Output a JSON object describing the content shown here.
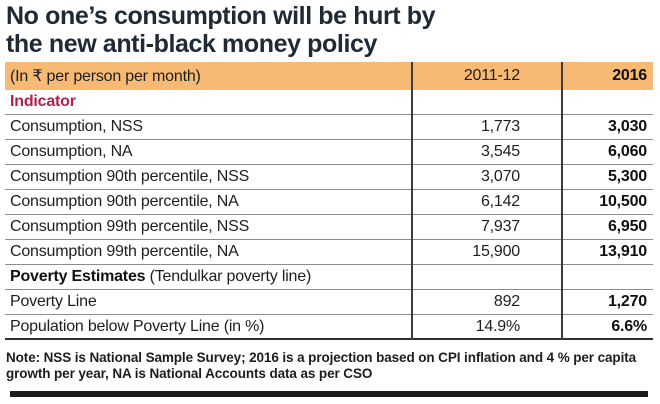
{
  "header": {
    "title_line1": "No one’s consumption will be hurt by",
    "title_line2": "the new anti-black money policy"
  },
  "chart_data": {
    "type": "table",
    "title": "No one’s consumption will be hurt by the new anti-black money policy",
    "unit_label": "(In ₹ per person per month)",
    "col_headers": [
      "2011-12",
      "2016"
    ],
    "rows": [
      {
        "label": "Indicator",
        "suffix": "",
        "y2011": "",
        "y2016": ""
      },
      {
        "label": "Consumption, NSS",
        "suffix": "",
        "y2011": "1,773",
        "y2016": "3,030"
      },
      {
        "label": "Consumption, NA",
        "suffix": "",
        "y2011": "3,545",
        "y2016": "6,060"
      },
      {
        "label": "Consumption 90th percentile, NSS",
        "suffix": "",
        "y2011": "3,070",
        "y2016": "5,300"
      },
      {
        "label": "Consumption 90th percentile, NA",
        "suffix": "",
        "y2011": "6,142",
        "y2016": "10,500"
      },
      {
        "label": "Consumption 99th percentile, NSS",
        "suffix": "",
        "y2011": "7,937",
        "y2016": "6,950"
      },
      {
        "label": "Consumption 99th percentile, NA",
        "suffix": "",
        "y2011": "15,900",
        "y2016": "13,910"
      },
      {
        "label": "Poverty Estimates",
        "suffix": " (Tendulkar poverty line)",
        "y2011": "",
        "y2016": ""
      },
      {
        "label": "Poverty Line",
        "suffix": "",
        "y2011": "892",
        "y2016": "1,270"
      },
      {
        "label": "Population below Poverty Line (in %)",
        "suffix": "",
        "y2011": "14.9%",
        "y2016": "6.6%"
      }
    ],
    "note": "Note: NSS is National Sample Survey; 2016 is a projection based on CPI inflation and 4 % per capita growth per year, NA is National Accounts data as per CSO"
  },
  "colors": {
    "header_band": "#f7ba75",
    "indicator_text": "#ae2050",
    "title_text": "#202a35",
    "rule_gray": "#8c8c8c",
    "bar_black": "#1c1c1c"
  }
}
